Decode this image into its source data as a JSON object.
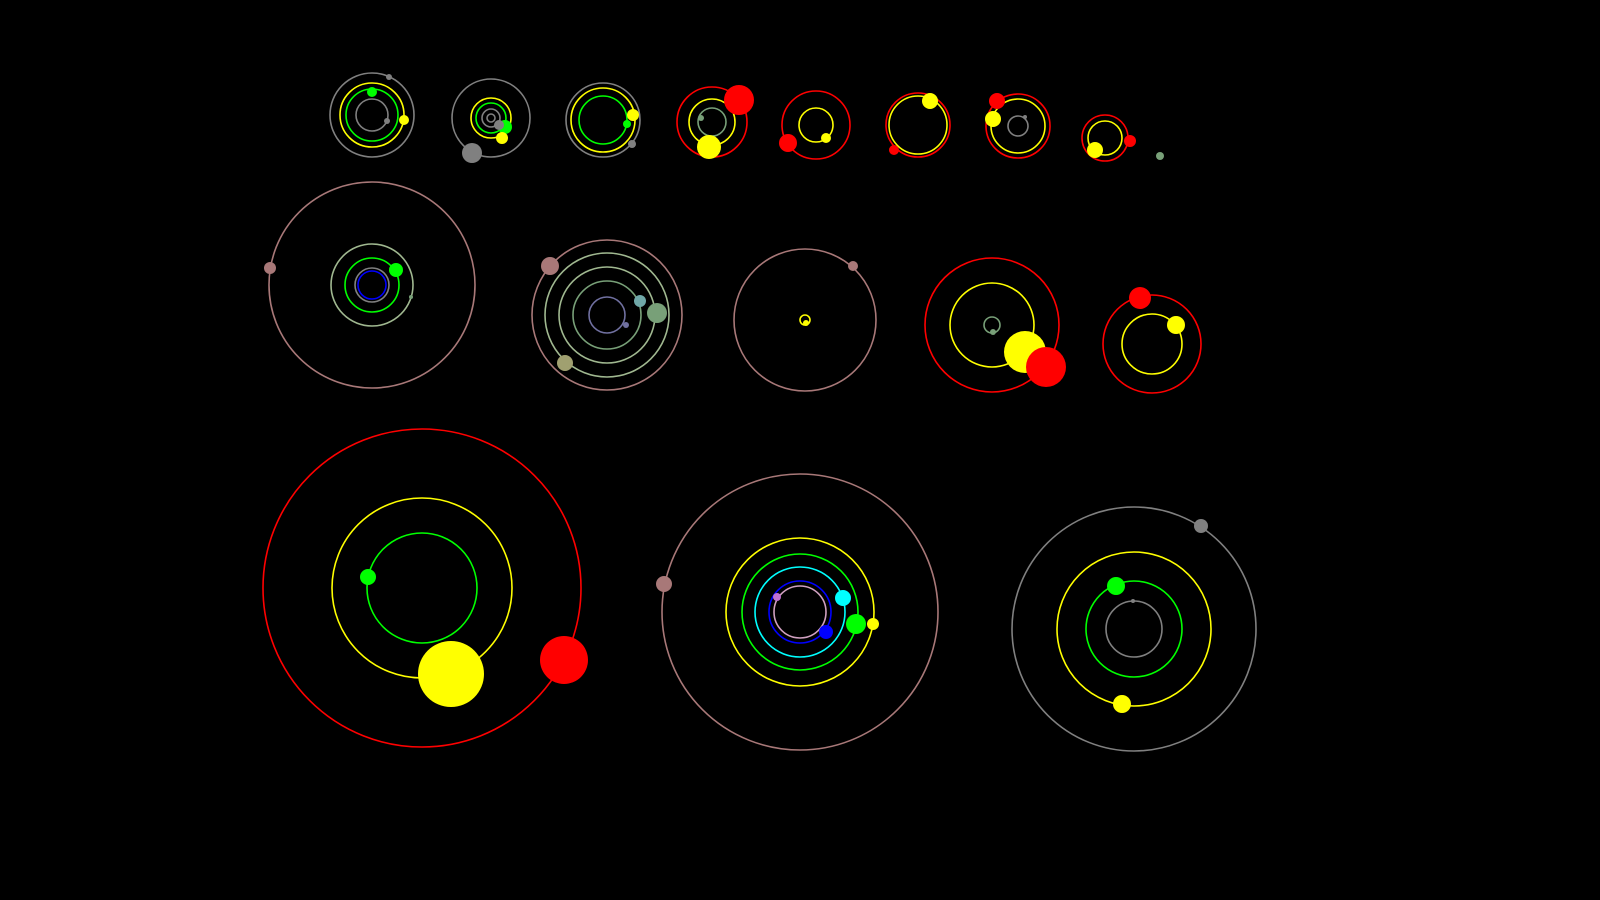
{
  "background": "#000000",
  "palette": {
    "red": "#ff0000",
    "yellow": "#ffff00",
    "green": "#00ff00",
    "gray": "#808080",
    "brown": "#a87878",
    "blue": "#0000ff",
    "cyan": "#00ffff",
    "sage": "#78a078",
    "pale": "#a0b890",
    "teal": "#70a8a8",
    "olive": "#a0a070",
    "slate": "#7070a0",
    "violet": "#c070d0",
    "pink": "#d0a0c0"
  },
  "systems": [
    {
      "orbits": [
        "gray",
        "yellow",
        "green",
        "gray"
      ],
      "planets": [
        "gray",
        "green",
        "yellow",
        "gray"
      ]
    },
    {
      "orbits": [
        "gray",
        "yellow",
        "green",
        "gray",
        "gray"
      ],
      "planets": [
        "gray",
        "green",
        "yellow",
        "gray"
      ]
    },
    {
      "orbits": [
        "gray",
        "yellow",
        "green"
      ],
      "planets": [
        "yellow",
        "green",
        "gray"
      ]
    },
    {
      "orbits": [
        "red",
        "yellow",
        "sage"
      ],
      "planets": [
        "red",
        "yellow",
        "sage"
      ]
    },
    {
      "orbits": [
        "red",
        "yellow"
      ],
      "planets": [
        "red",
        "yellow"
      ]
    },
    {
      "orbits": [
        "red",
        "yellow"
      ],
      "planets": [
        "yellow",
        "red"
      ]
    },
    {
      "orbits": [
        "red",
        "yellow",
        "gray"
      ],
      "planets": [
        "red",
        "yellow",
        "gray"
      ]
    },
    {
      "orbits": [
        "red",
        "yellow"
      ],
      "planets": [
        "yellow",
        "red"
      ]
    },
    {
      "orbits": [],
      "planets": [
        "sage"
      ]
    },
    {
      "orbits": [
        "brown",
        "pale",
        "green",
        "gray",
        "blue"
      ],
      "planets": [
        "brown",
        "green",
        "sage"
      ]
    },
    {
      "orbits": [
        "brown",
        "pale",
        "pale",
        "sage",
        "slate"
      ],
      "planets": [
        "brown",
        "olive",
        "teal",
        "sage",
        "slate"
      ]
    },
    {
      "orbits": [
        "brown",
        "yellow"
      ],
      "planets": [
        "brown",
        "yellow"
      ]
    },
    {
      "orbits": [
        "red",
        "yellow",
        "sage"
      ],
      "planets": [
        "yellow",
        "red",
        "sage"
      ]
    },
    {
      "orbits": [
        "red",
        "yellow"
      ],
      "planets": [
        "red",
        "yellow"
      ]
    },
    {
      "orbits": [
        "red",
        "yellow",
        "green"
      ],
      "planets": [
        "red",
        "yellow",
        "green"
      ]
    },
    {
      "orbits": [
        "brown",
        "yellow",
        "green",
        "cyan",
        "blue",
        "pink"
      ],
      "planets": [
        "brown",
        "green",
        "yellow",
        "cyan",
        "blue",
        "violet"
      ]
    },
    {
      "orbits": [
        "gray",
        "yellow",
        "green",
        "gray"
      ],
      "planets": [
        "gray",
        "green",
        "yellow",
        "gray"
      ]
    }
  ]
}
